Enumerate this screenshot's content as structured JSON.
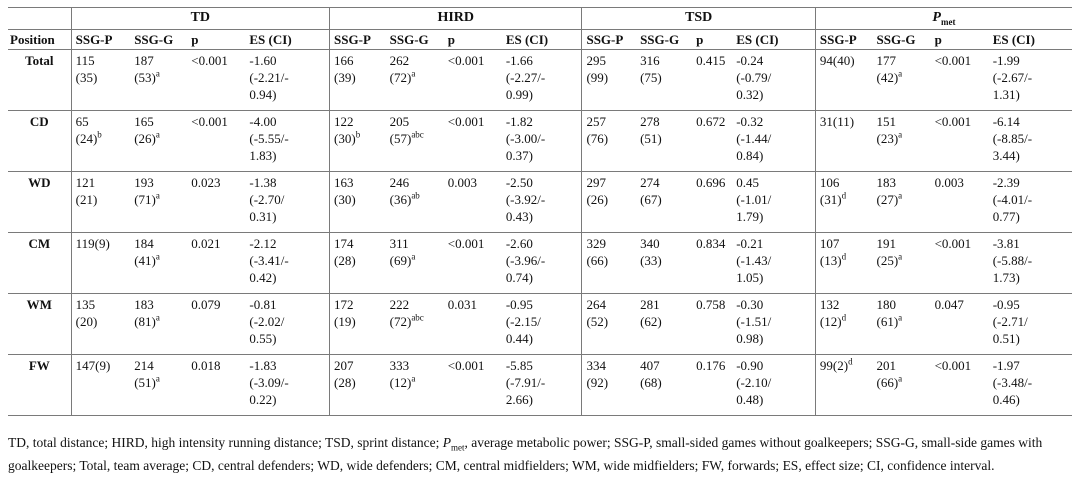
{
  "groups": [
    {
      "label": "TD"
    },
    {
      "label": "HIRD"
    },
    {
      "label": "TSD"
    },
    {
      "label": "P",
      "sub": "met"
    }
  ],
  "columns": [
    "Position",
    "SSG-P",
    "SSG-G",
    "p",
    "ES (CI)",
    "SSG-P",
    "SSG-G",
    "p",
    "ES (CI)",
    "SSG-P",
    "SSG-G",
    "p",
    "ES (CI)",
    "SSG-P",
    "SSG-G",
    "p",
    "ES (CI)"
  ],
  "rows": [
    {
      "position": "Total",
      "cells": [
        [
          "115",
          "(35)"
        ],
        [
          "187",
          "(53)",
          "a"
        ],
        [
          "<0.001"
        ],
        [
          "-1.60",
          "(-2.21/-",
          "0.94)"
        ],
        [
          "166",
          "(39)"
        ],
        [
          "262",
          "(72)",
          "a"
        ],
        [
          "<0.001"
        ],
        [
          "-1.66",
          "(-2.27/-",
          "0.99)"
        ],
        [
          "295",
          "(99)"
        ],
        [
          "316",
          "(75)"
        ],
        [
          "0.415"
        ],
        [
          "-0.24",
          "(-0.79/",
          "0.32)"
        ],
        [
          "94(40)"
        ],
        [
          "177",
          "(42)",
          "a"
        ],
        [
          "<0.001"
        ],
        [
          "-1.99",
          "(-2.67/-",
          "1.31)"
        ]
      ]
    },
    {
      "position": "CD",
      "cells": [
        [
          "65",
          "(24)",
          "b"
        ],
        [
          "165",
          "(26)",
          "a"
        ],
        [
          "<0.001"
        ],
        [
          "-4.00",
          "(-5.55/-",
          "1.83)"
        ],
        [
          "122",
          "(30)",
          "b"
        ],
        [
          "205",
          "(57)",
          "abc"
        ],
        [
          "<0.001"
        ],
        [
          "-1.82",
          "(-3.00/-",
          "0.37)"
        ],
        [
          "257",
          "(76)"
        ],
        [
          "278",
          "(51)"
        ],
        [
          "0.672"
        ],
        [
          "-0.32",
          "(-1.44/",
          "0.84)"
        ],
        [
          "31(11)"
        ],
        [
          "151",
          "(23)",
          "a"
        ],
        [
          "<0.001"
        ],
        [
          "-6.14",
          "(-8.85/-",
          "3.44)"
        ]
      ]
    },
    {
      "position": "WD",
      "cells": [
        [
          "121",
          "(21)"
        ],
        [
          "193",
          "(71)",
          "a"
        ],
        [
          "0.023"
        ],
        [
          "-1.38",
          "(-2.70/",
          "0.31)"
        ],
        [
          "163",
          "(30)"
        ],
        [
          "246",
          "(36)",
          "ab"
        ],
        [
          "0.003"
        ],
        [
          "-2.50",
          "(-3.92/-",
          "0.43)"
        ],
        [
          "297",
          "(26)"
        ],
        [
          "274",
          "(67)"
        ],
        [
          "0.696"
        ],
        [
          "0.45",
          "(-1.01/",
          "1.79)"
        ],
        [
          "106",
          "(31)",
          "d"
        ],
        [
          "183",
          "(27)",
          "a"
        ],
        [
          "0.003"
        ],
        [
          "-2.39",
          "(-4.01/-",
          "0.77)"
        ]
      ]
    },
    {
      "position": "CM",
      "cells": [
        [
          "119(9)"
        ],
        [
          "184",
          "(41)",
          "a"
        ],
        [
          "0.021"
        ],
        [
          "-2.12",
          "(-3.41/-",
          "0.42)"
        ],
        [
          "174",
          "(28)"
        ],
        [
          "311",
          "(69)",
          "a"
        ],
        [
          "<0.001"
        ],
        [
          "-2.60",
          "(-3.96/-",
          "0.74)"
        ],
        [
          "329",
          "(66)"
        ],
        [
          "340",
          "(33)"
        ],
        [
          "0.834"
        ],
        [
          "-0.21",
          "(-1.43/",
          "1.05)"
        ],
        [
          "107",
          "(13)",
          "d"
        ],
        [
          "191",
          "(25)",
          "a"
        ],
        [
          "<0.001"
        ],
        [
          "-3.81",
          "(-5.88/-",
          "1.73)"
        ]
      ]
    },
    {
      "position": "WM",
      "cells": [
        [
          "135",
          "(20)"
        ],
        [
          "183",
          "(81)",
          "a"
        ],
        [
          "0.079"
        ],
        [
          "-0.81",
          "(-2.02/",
          "0.55)"
        ],
        [
          "172",
          "(19)"
        ],
        [
          "222",
          "(72)",
          "abc"
        ],
        [
          "0.031"
        ],
        [
          "-0.95",
          "(-2.15/",
          "0.44)"
        ],
        [
          "264",
          "(52)"
        ],
        [
          "281",
          "(62)"
        ],
        [
          "0.758"
        ],
        [
          "-0.30",
          "(-1.51/",
          "0.98)"
        ],
        [
          "132",
          "(12)",
          "d"
        ],
        [
          "180",
          "(61)",
          "a"
        ],
        [
          "0.047"
        ],
        [
          "-0.95",
          "(-2.71/",
          "0.51)"
        ]
      ]
    },
    {
      "position": "FW",
      "cells": [
        [
          "147(9)"
        ],
        [
          "214",
          "(51)",
          "a"
        ],
        [
          "0.018"
        ],
        [
          "-1.83",
          "(-3.09/-",
          "0.22)"
        ],
        [
          "207",
          "(28)"
        ],
        [
          "333",
          "(12)",
          "a"
        ],
        [
          "<0.001"
        ],
        [
          "-5.85",
          "(-7.91/-",
          "2.66)"
        ],
        [
          "334",
          "(92)"
        ],
        [
          "407",
          "(68)"
        ],
        [
          "0.176"
        ],
        [
          "-0.90",
          "(-2.10/",
          "0.48)"
        ],
        [
          "99(2)",
          "",
          "d"
        ],
        [
          "201",
          "(66)",
          "a"
        ],
        [
          "<0.001"
        ],
        [
          "-1.97",
          "(-3.48/-",
          "0.46)"
        ]
      ]
    }
  ],
  "footnote": {
    "part1": "TD, total distance; HIRD, high intensity running distance; TSD, sprint distance; ",
    "pmet_main": "P",
    "pmet_sub": "met",
    "part2": ", average metabolic power; SSG-P, small-sided games without goalkeepers; SSG-G, small-side games with goalkeepers; Total, team average; CD, central defenders; WD, wide defenders; CM, central midfielders; WM, wide midfielders; FW, forwards; ES, effect size; CI, confidence interval."
  }
}
